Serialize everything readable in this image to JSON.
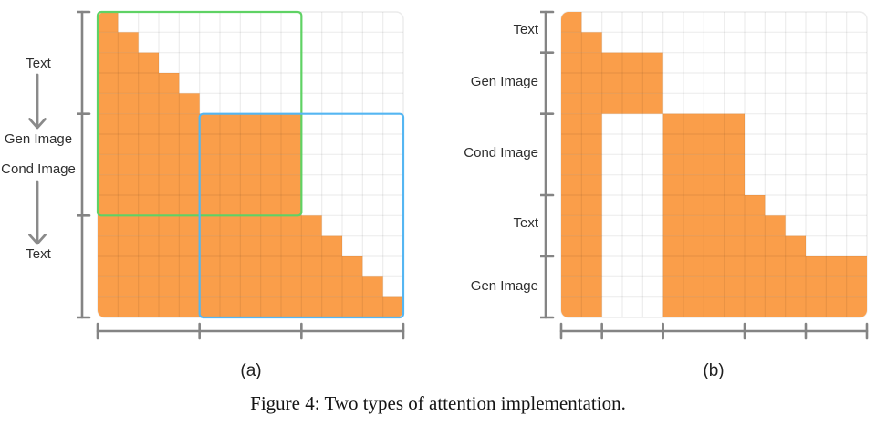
{
  "figure": {
    "caption": "Figure 4: Two types of attention implementation.",
    "panel_labels": [
      "(a)",
      "(b)"
    ]
  },
  "colors": {
    "cell_fill": "#FA9E4A",
    "grid_line": "rgba(0,0,0,0.07)",
    "grid_border": "#EBEBEB",
    "grid_background": "#FFFFFF",
    "axis": "#848484",
    "arrow": "#8A8A8A",
    "label_text": "#2E2E2E",
    "green_overlay": "#5FD264",
    "blue_overlay": "#55B6F2"
  },
  "chart_data": [
    {
      "type": "heatmap",
      "panel": "(a)",
      "rows": 15,
      "cols": 15,
      "row_labels": [
        "Text",
        "Gen Image",
        "Cond Image",
        "Text"
      ],
      "row_blocks": [
        {
          "label": "Text",
          "span": 5
        },
        {
          "label": "Gen Image / Cond Image",
          "span": 5
        },
        {
          "label": "Text",
          "span": 5
        }
      ],
      "col_blocks": [
        5,
        5,
        5
      ],
      "row_tick_after": [
        5,
        10
      ],
      "col_tick_after": [
        5,
        10
      ],
      "filled": [
        [
          [
            1,
            1
          ]
        ],
        [
          [
            1,
            2
          ]
        ],
        [
          [
            1,
            3
          ]
        ],
        [
          [
            1,
            4
          ]
        ],
        [
          [
            1,
            5
          ]
        ],
        [
          [
            1,
            10
          ]
        ],
        [
          [
            1,
            10
          ]
        ],
        [
          [
            1,
            10
          ]
        ],
        [
          [
            1,
            10
          ]
        ],
        [
          [
            1,
            10
          ]
        ],
        [
          [
            1,
            11
          ]
        ],
        [
          [
            1,
            12
          ]
        ],
        [
          [
            1,
            13
          ]
        ],
        [
          [
            1,
            14
          ]
        ],
        [
          [
            1,
            15
          ]
        ]
      ],
      "overlays": [
        {
          "name": "green-box",
          "color": "#5FD264",
          "rows": [
            1,
            10
          ],
          "cols": [
            1,
            10
          ]
        },
        {
          "name": "blue-box",
          "color": "#55B6F2",
          "rows": [
            6,
            15
          ],
          "cols": [
            6,
            15
          ]
        }
      ]
    },
    {
      "type": "heatmap",
      "panel": "(b)",
      "rows": 15,
      "cols": 15,
      "row_labels": [
        "Text",
        "Gen Image",
        "Cond Image",
        "Text",
        "Gen Image"
      ],
      "row_blocks": [
        {
          "label": "Text",
          "span": 2
        },
        {
          "label": "Gen Image",
          "span": 3
        },
        {
          "label": "Cond Image",
          "span": 4
        },
        {
          "label": "Text",
          "span": 3
        },
        {
          "label": "Gen Image",
          "span": 3
        }
      ],
      "col_blocks": [
        2,
        3,
        4,
        3,
        3
      ],
      "row_tick_after": [
        2,
        5,
        9,
        12
      ],
      "col_tick_after": [
        2,
        5,
        9,
        12
      ],
      "filled": [
        [
          [
            1,
            1
          ]
        ],
        [
          [
            1,
            2
          ]
        ],
        [
          [
            1,
            5
          ]
        ],
        [
          [
            1,
            5
          ]
        ],
        [
          [
            1,
            5
          ]
        ],
        [
          [
            1,
            2
          ],
          [
            6,
            9
          ]
        ],
        [
          [
            1,
            2
          ],
          [
            6,
            9
          ]
        ],
        [
          [
            1,
            2
          ],
          [
            6,
            9
          ]
        ],
        [
          [
            1,
            2
          ],
          [
            6,
            9
          ]
        ],
        [
          [
            1,
            2
          ],
          [
            6,
            10
          ]
        ],
        [
          [
            1,
            2
          ],
          [
            6,
            11
          ]
        ],
        [
          [
            1,
            2
          ],
          [
            6,
            12
          ]
        ],
        [
          [
            1,
            2
          ],
          [
            6,
            15
          ]
        ],
        [
          [
            1,
            2
          ],
          [
            6,
            15
          ]
        ],
        [
          [
            1,
            2
          ],
          [
            6,
            15
          ]
        ]
      ],
      "overlays": []
    }
  ]
}
